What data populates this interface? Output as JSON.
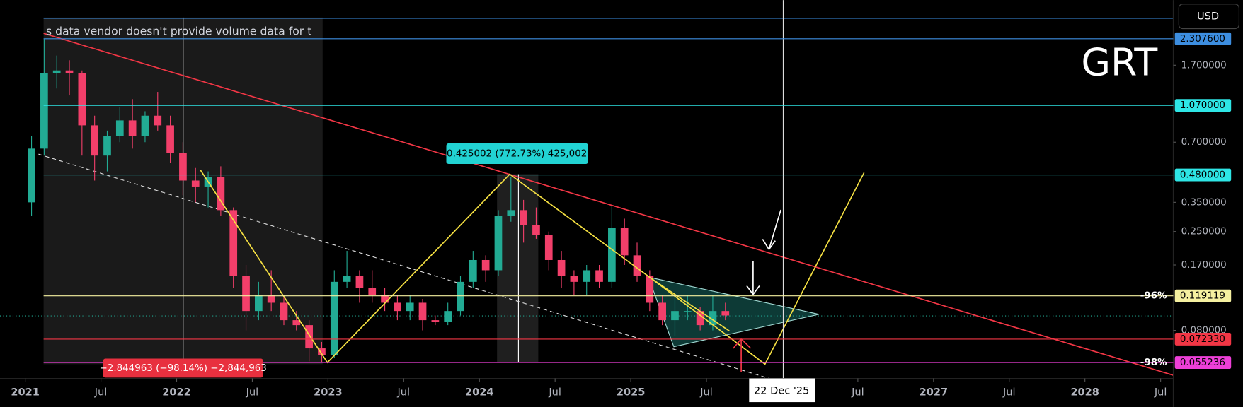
{
  "chart_data": {
    "type": "candlestick",
    "title": "GRT",
    "currency_button": "USD",
    "volume_notice": "s data vendor doesn't provide volume data for t",
    "log_scale": true,
    "up_color": "#22ab94",
    "down_color": "#f23f6a",
    "ylim": [
      0.046,
      3.6
    ],
    "yticks": [
      {
        "value": 1.7,
        "label": "1.700000"
      },
      {
        "value": 0.7,
        "label": "0.700000"
      },
      {
        "value": 0.35,
        "label": "0.350000"
      },
      {
        "value": 0.25,
        "label": "0.250000"
      },
      {
        "value": 0.17,
        "label": "0.170000"
      },
      {
        "value": 0.08,
        "label": "0.080000"
      }
    ],
    "levels": [
      {
        "value": 2.3076,
        "label": "2.307600",
        "color": "#3d8ee0"
      },
      {
        "value": 1.07,
        "label": "1.070000",
        "color": "#2ee6e6"
      },
      {
        "value": 0.48,
        "label": "0.480000",
        "color": "#2ee6e6"
      },
      {
        "value": 0.119119,
        "label": "0.119119",
        "color": "#f5f0a0",
        "pct_label": "-96%"
      },
      {
        "value": 0.07233,
        "label": "0.072330",
        "color": "#f23645"
      },
      {
        "value": 0.055236,
        "label": "0.055236",
        "color": "#ee3fd8",
        "pct_label": "-98%"
      }
    ],
    "xlim": [
      "2020-11",
      "2028-08"
    ],
    "xticks": [
      {
        "value": "2021-01",
        "label": "2021"
      },
      {
        "value": "2021-07",
        "label": "Jul"
      },
      {
        "value": "2022-01",
        "label": "2022"
      },
      {
        "value": "2022-07",
        "label": "Jul"
      },
      {
        "value": "2023-01",
        "label": "2023"
      },
      {
        "value": "2023-07",
        "label": "Jul"
      },
      {
        "value": "2024-01",
        "label": "2024"
      },
      {
        "value": "2024-07",
        "label": "Jul"
      },
      {
        "value": "2025-01",
        "label": "2025"
      },
      {
        "value": "2025-07",
        "label": "Jul"
      },
      {
        "value": "2026-07",
        "label": "Jul"
      },
      {
        "value": "2027-01",
        "label": "2027"
      },
      {
        "value": "2027-07",
        "label": "Jul"
      },
      {
        "value": "2028-01",
        "label": "2028"
      },
      {
        "value": "2028-07",
        "label": "Jul"
      }
    ],
    "crosshair_label": "22 Dec '25",
    "measure_up": "0.425002 (772.73%) 425,002",
    "measure_down": "−2.844963 (−98.14%) −2,844,963",
    "x": [
      "2021-01",
      "2021-02",
      "2021-03",
      "2021-04",
      "2021-05",
      "2021-06",
      "2021-07",
      "2021-08",
      "2021-09",
      "2021-10",
      "2021-11",
      "2021-12",
      "2022-01",
      "2022-02",
      "2022-03",
      "2022-04",
      "2022-05",
      "2022-06",
      "2022-07",
      "2022-08",
      "2022-09",
      "2022-10",
      "2022-11",
      "2022-12",
      "2023-01",
      "2023-02",
      "2023-03",
      "2023-04",
      "2023-05",
      "2023-06",
      "2023-07",
      "2023-08",
      "2023-09",
      "2023-10",
      "2023-11",
      "2023-12",
      "2024-01",
      "2024-02",
      "2024-03",
      "2024-04",
      "2024-05",
      "2024-06",
      "2024-07",
      "2024-08",
      "2024-09",
      "2024-10",
      "2024-11",
      "2024-12",
      "2025-01",
      "2025-02",
      "2025-03",
      "2025-04",
      "2025-05",
      "2025-06",
      "2025-07",
      "2025-08"
    ],
    "ohlc": [
      [
        0.35,
        0.75,
        0.3,
        0.65
      ],
      [
        0.65,
        2.3,
        0.6,
        1.55
      ],
      [
        1.55,
        1.9,
        1.3,
        1.6
      ],
      [
        1.6,
        1.8,
        1.2,
        1.55
      ],
      [
        1.55,
        1.6,
        0.6,
        0.85
      ],
      [
        0.85,
        0.95,
        0.45,
        0.6
      ],
      [
        0.6,
        0.8,
        0.5,
        0.75
      ],
      [
        0.75,
        1.05,
        0.7,
        0.9
      ],
      [
        0.9,
        1.15,
        0.65,
        0.75
      ],
      [
        0.75,
        1.0,
        0.7,
        0.95
      ],
      [
        0.95,
        1.25,
        0.8,
        0.85
      ],
      [
        0.85,
        0.95,
        0.55,
        0.62
      ],
      [
        0.62,
        0.7,
        0.38,
        0.45
      ],
      [
        0.45,
        0.52,
        0.35,
        0.42
      ],
      [
        0.42,
        0.5,
        0.33,
        0.47
      ],
      [
        0.47,
        0.53,
        0.3,
        0.32
      ],
      [
        0.32,
        0.33,
        0.13,
        0.15
      ],
      [
        0.15,
        0.17,
        0.08,
        0.1
      ],
      [
        0.1,
        0.14,
        0.09,
        0.12
      ],
      [
        0.12,
        0.16,
        0.1,
        0.11
      ],
      [
        0.11,
        0.12,
        0.085,
        0.09
      ],
      [
        0.09,
        0.1,
        0.08,
        0.085
      ],
      [
        0.085,
        0.09,
        0.056,
        0.065
      ],
      [
        0.065,
        0.07,
        0.055,
        0.06
      ],
      [
        0.06,
        0.16,
        0.058,
        0.14
      ],
      [
        0.14,
        0.2,
        0.13,
        0.15
      ],
      [
        0.15,
        0.16,
        0.11,
        0.13
      ],
      [
        0.13,
        0.16,
        0.11,
        0.12
      ],
      [
        0.12,
        0.13,
        0.1,
        0.11
      ],
      [
        0.11,
        0.12,
        0.09,
        0.1
      ],
      [
        0.1,
        0.12,
        0.09,
        0.11
      ],
      [
        0.11,
        0.115,
        0.08,
        0.09
      ],
      [
        0.09,
        0.095,
        0.085,
        0.088
      ],
      [
        0.088,
        0.11,
        0.085,
        0.1
      ],
      [
        0.1,
        0.15,
        0.095,
        0.14
      ],
      [
        0.14,
        0.2,
        0.13,
        0.18
      ],
      [
        0.18,
        0.19,
        0.14,
        0.16
      ],
      [
        0.16,
        0.32,
        0.15,
        0.3
      ],
      [
        0.3,
        0.47,
        0.28,
        0.32
      ],
      [
        0.32,
        0.36,
        0.22,
        0.27
      ],
      [
        0.27,
        0.33,
        0.23,
        0.24
      ],
      [
        0.24,
        0.25,
        0.16,
        0.18
      ],
      [
        0.18,
        0.2,
        0.13,
        0.15
      ],
      [
        0.15,
        0.16,
        0.12,
        0.14
      ],
      [
        0.14,
        0.17,
        0.12,
        0.16
      ],
      [
        0.16,
        0.17,
        0.13,
        0.14
      ],
      [
        0.14,
        0.34,
        0.13,
        0.26
      ],
      [
        0.26,
        0.29,
        0.17,
        0.19
      ],
      [
        0.19,
        0.22,
        0.14,
        0.15
      ],
      [
        0.15,
        0.16,
        0.1,
        0.11
      ],
      [
        0.11,
        0.12,
        0.085,
        0.09
      ],
      [
        0.09,
        0.12,
        0.075,
        0.1
      ],
      [
        0.1,
        0.12,
        0.09,
        0.1
      ],
      [
        0.1,
        0.105,
        0.08,
        0.085
      ],
      [
        0.085,
        0.12,
        0.08,
        0.1
      ],
      [
        0.1,
        0.11,
        0.09,
        0.095
      ]
    ]
  }
}
